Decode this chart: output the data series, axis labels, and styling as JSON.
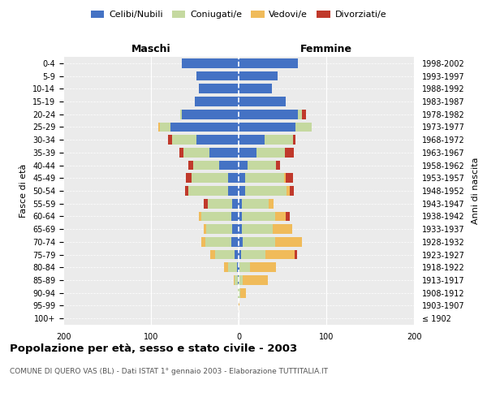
{
  "age_groups": [
    "100+",
    "95-99",
    "90-94",
    "85-89",
    "80-84",
    "75-79",
    "70-74",
    "65-69",
    "60-64",
    "55-59",
    "50-54",
    "45-49",
    "40-44",
    "35-39",
    "30-34",
    "25-29",
    "20-24",
    "15-19",
    "10-14",
    "5-9",
    "0-4"
  ],
  "birth_years": [
    "≤ 1902",
    "1903-1907",
    "1908-1912",
    "1913-1917",
    "1918-1922",
    "1923-1927",
    "1928-1932",
    "1933-1937",
    "1938-1942",
    "1943-1947",
    "1948-1952",
    "1953-1957",
    "1958-1962",
    "1963-1967",
    "1968-1972",
    "1973-1977",
    "1978-1982",
    "1983-1987",
    "1988-1992",
    "1993-1997",
    "1998-2002"
  ],
  "maschi": {
    "celibi": [
      0,
      0,
      0,
      1,
      2,
      5,
      8,
      7,
      8,
      7,
      12,
      12,
      22,
      33,
      48,
      78,
      65,
      50,
      45,
      48,
      65
    ],
    "coniugati": [
      0,
      0,
      1,
      4,
      10,
      22,
      30,
      30,
      35,
      28,
      45,
      42,
      30,
      30,
      28,
      12,
      2,
      0,
      0,
      0,
      0
    ],
    "vedovi": [
      0,
      0,
      0,
      1,
      5,
      5,
      5,
      3,
      2,
      0,
      0,
      0,
      0,
      0,
      0,
      2,
      0,
      0,
      0,
      0,
      0
    ],
    "divorziati": [
      0,
      0,
      0,
      0,
      0,
      0,
      0,
      0,
      0,
      5,
      4,
      6,
      5,
      5,
      5,
      0,
      0,
      0,
      0,
      0,
      0
    ]
  },
  "femmine": {
    "nubili": [
      0,
      0,
      0,
      0,
      1,
      3,
      5,
      4,
      4,
      4,
      7,
      7,
      10,
      20,
      30,
      65,
      68,
      54,
      38,
      44,
      68
    ],
    "coniugate": [
      0,
      0,
      2,
      5,
      12,
      28,
      37,
      35,
      38,
      30,
      48,
      45,
      33,
      33,
      32,
      18,
      4,
      0,
      0,
      0,
      0
    ],
    "vedove": [
      0,
      1,
      6,
      28,
      30,
      33,
      30,
      22,
      12,
      6,
      3,
      2,
      0,
      0,
      0,
      0,
      0,
      0,
      0,
      0,
      0
    ],
    "divorziate": [
      0,
      0,
      0,
      0,
      0,
      3,
      0,
      0,
      4,
      0,
      5,
      8,
      4,
      10,
      3,
      0,
      5,
      0,
      0,
      0,
      0
    ]
  },
  "colors": {
    "celibi": "#4472c4",
    "coniugati": "#c5d9a0",
    "vedovi": "#f0bb5a",
    "divorziati": "#c0392b"
  },
  "legend_labels": [
    "Celibi/Nubili",
    "Coniugati/e",
    "Vedovi/e",
    "Divorziati/e"
  ],
  "title": "Popolazione per età, sesso e stato civile - 2003",
  "subtitle": "COMUNE DI QUERO VAS (BL) - Dati ISTAT 1° gennaio 2003 - Elaborazione TUTTITALIA.IT",
  "xlabel_left": "Maschi",
  "xlabel_right": "Femmine",
  "ylabel_left": "Fasce di età",
  "ylabel_right": "Anni di nascita",
  "xlim": 200,
  "background_color": "#ffffff",
  "plot_bg": "#ebebeb",
  "bar_height": 0.75
}
